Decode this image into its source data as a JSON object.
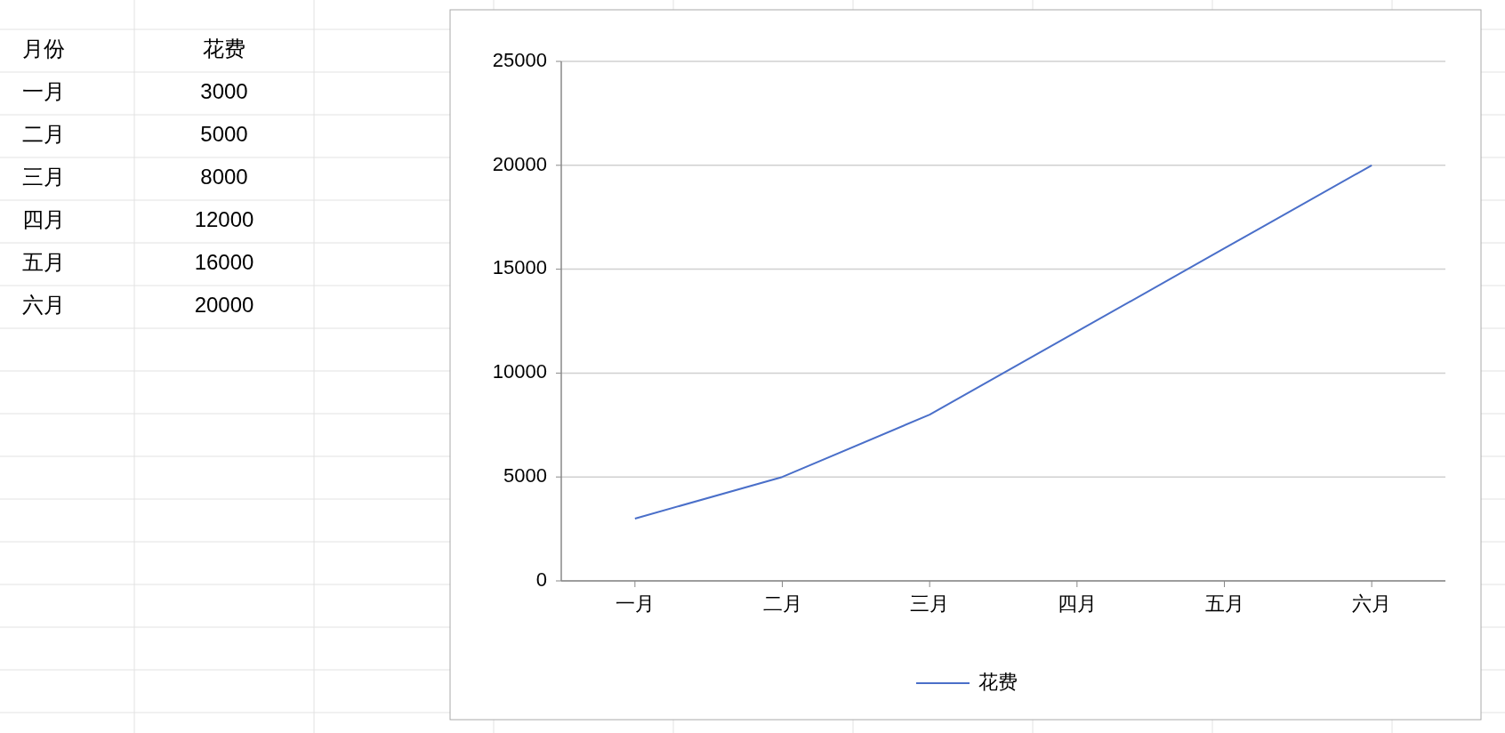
{
  "chart_data": {
    "type": "line",
    "categories": [
      "一月",
      "二月",
      "三月",
      "四月",
      "五月",
      "六月"
    ],
    "series": [
      {
        "name": "花费",
        "color": "#4a6fc9",
        "values": [
          3000,
          5000,
          8000,
          12000,
          16000,
          20000
        ]
      }
    ],
    "ylim": [
      0,
      25000
    ],
    "yticks": [
      0,
      5000,
      10000,
      15000,
      20000,
      25000
    ],
    "grid": "y",
    "legend": "bottom",
    "annotations": [
      "月份",
      "3000",
      "5000",
      "8000",
      "12000",
      "16000",
      "20000"
    ]
  }
}
